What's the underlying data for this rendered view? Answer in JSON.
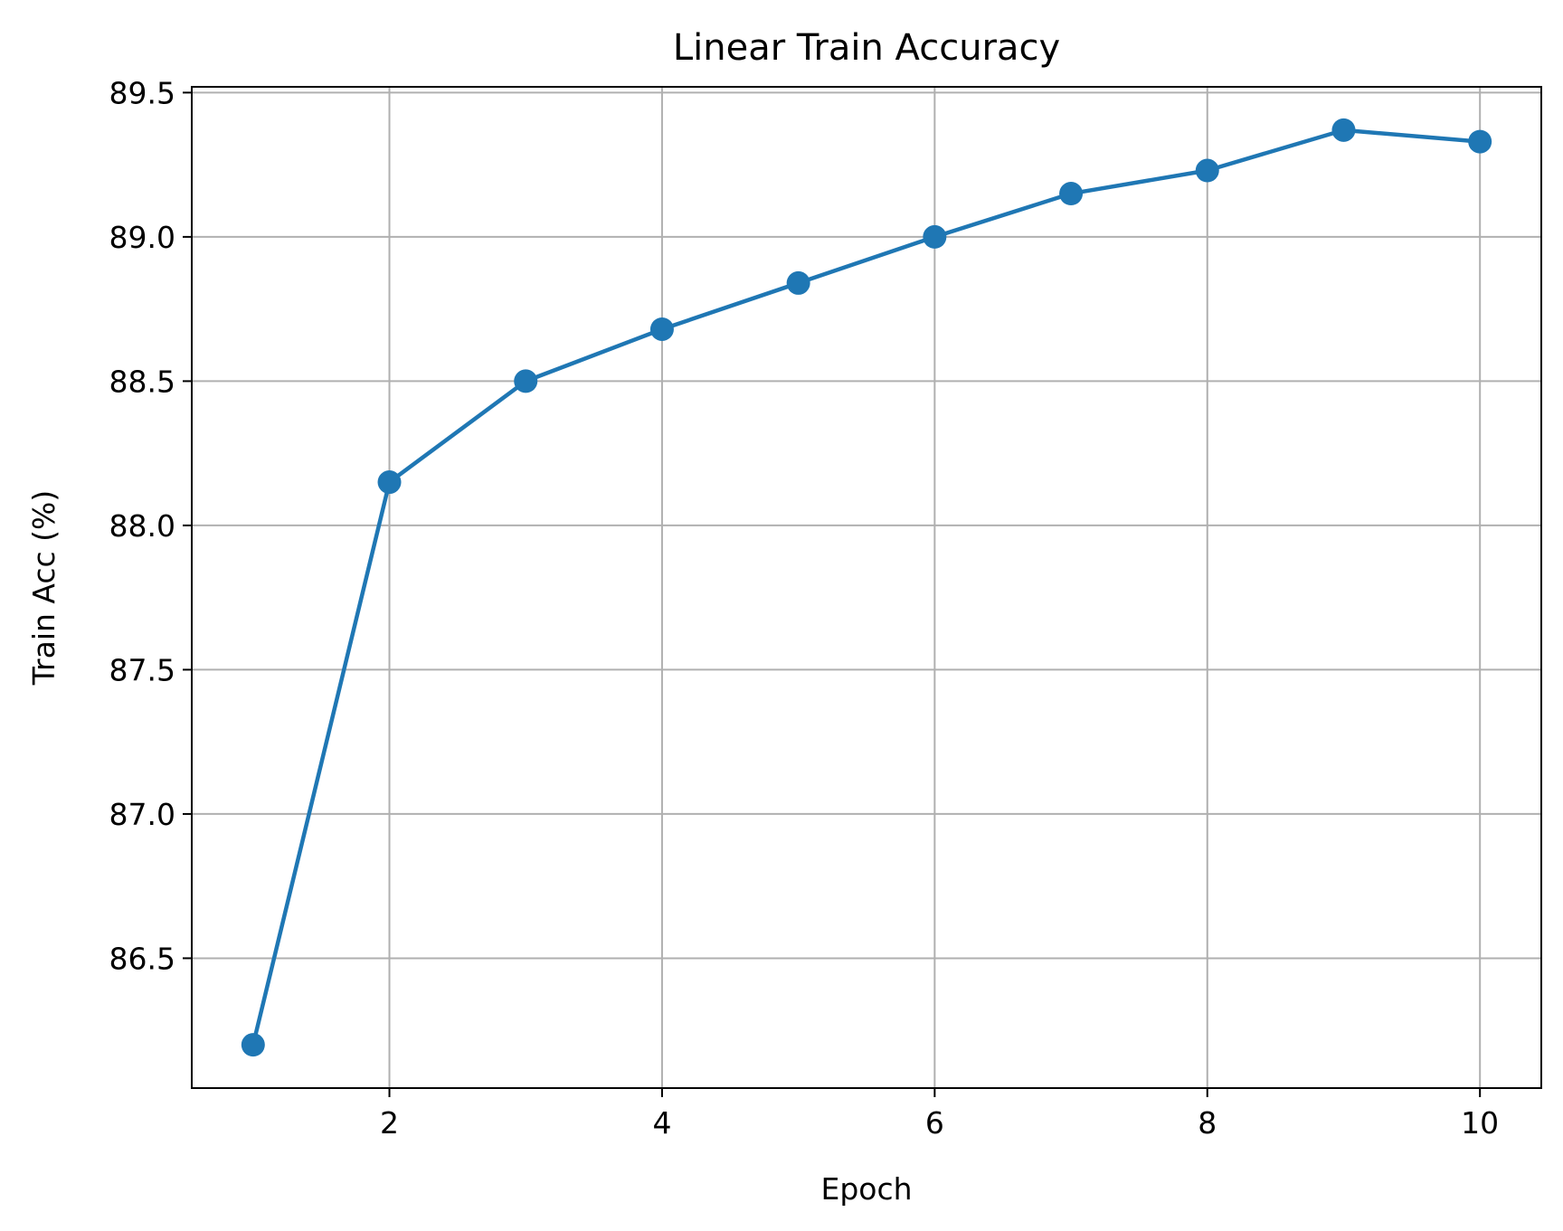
{
  "chart_data": {
    "type": "line",
    "title": "Linear Train Accuracy",
    "xlabel": "Epoch",
    "ylabel": "Train Acc (%)",
    "xlim": [
      0.55,
      10.45
    ],
    "ylim": [
      86.05,
      89.52
    ],
    "xticks": [
      2,
      4,
      6,
      8,
      10
    ],
    "xtick_labels": [
      "2",
      "4",
      "6",
      "8",
      "10"
    ],
    "yticks": [
      86.5,
      87.0,
      87.5,
      88.0,
      88.5,
      89.0,
      89.5
    ],
    "ytick_labels": [
      "86.5",
      "87.0",
      "87.5",
      "88.0",
      "88.5",
      "89.0",
      "89.5"
    ],
    "grid": true,
    "series": [
      {
        "x": [
          1,
          2,
          3,
          4,
          5,
          6,
          7,
          8,
          9,
          10
        ],
        "values": [
          86.2,
          88.15,
          88.5,
          88.68,
          88.84,
          89.0,
          89.15,
          89.23,
          89.37,
          89.33
        ],
        "color": "#1f77b4",
        "marker": "circle"
      }
    ]
  }
}
